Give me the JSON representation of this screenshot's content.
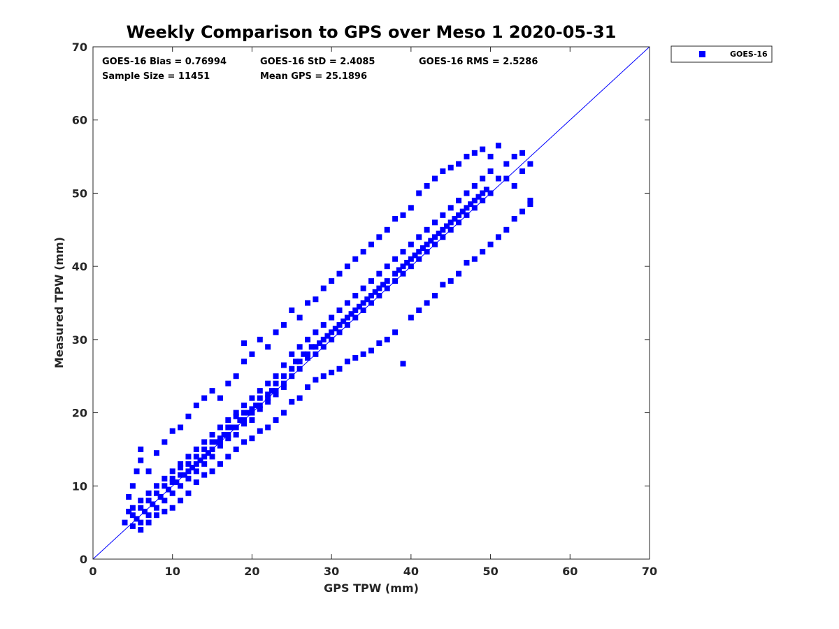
{
  "chart_data": {
    "type": "scatter",
    "title": "Weekly Comparison to GPS over Meso 1 2020-05-31",
    "xlabel": "GPS TPW (mm)",
    "ylabel": "Measured TPW (mm)",
    "xlim": [
      0,
      70
    ],
    "ylim": [
      0,
      70
    ],
    "xticks": [
      0,
      10,
      20,
      30,
      40,
      50,
      60,
      70
    ],
    "yticks": [
      0,
      10,
      20,
      30,
      40,
      50,
      60,
      70
    ],
    "grid": false,
    "legend_position": "outside-top-right",
    "stats": {
      "bias": "GOES-16 Bias = 0.76994",
      "std": "GOES-16 StD = 2.4085",
      "rms": "GOES-16 RMS = 2.5286",
      "sample_size": "Sample Size = 11451",
      "mean_gps": "Mean GPS = 25.1896"
    },
    "reference_line": {
      "type": "one-to-one",
      "from": [
        0,
        0
      ],
      "to": [
        70,
        70
      ],
      "color": "#0000ff"
    },
    "series": [
      {
        "name": "GOES-16",
        "color": "#0000ff",
        "marker": "square",
        "points": [
          [
            4,
            5
          ],
          [
            4.5,
            6.5
          ],
          [
            5,
            4.5
          ],
          [
            5,
            7
          ],
          [
            5.5,
            5.5
          ],
          [
            6,
            5
          ],
          [
            6,
            8
          ],
          [
            6.5,
            6.5
          ],
          [
            7,
            6
          ],
          [
            7,
            9
          ],
          [
            7.5,
            7.5
          ],
          [
            8,
            7
          ],
          [
            8,
            10
          ],
          [
            8.5,
            8.5
          ],
          [
            9,
            8
          ],
          [
            9,
            11
          ],
          [
            9.5,
            9.5
          ],
          [
            10,
            9
          ],
          [
            10,
            12
          ],
          [
            10.5,
            10.5
          ],
          [
            11,
            10
          ],
          [
            11,
            13
          ],
          [
            11.5,
            11.5
          ],
          [
            12,
            11
          ],
          [
            12,
            14
          ],
          [
            12.5,
            12.5
          ],
          [
            13,
            12
          ],
          [
            13,
            15
          ],
          [
            13.5,
            13.5
          ],
          [
            14,
            13
          ],
          [
            14,
            16
          ],
          [
            14.5,
            14.5
          ],
          [
            15,
            14
          ],
          [
            15,
            17
          ],
          [
            15.5,
            16
          ],
          [
            16,
            15.5
          ],
          [
            16,
            18
          ],
          [
            16.5,
            17
          ],
          [
            17,
            16.5
          ],
          [
            17,
            19
          ],
          [
            17.5,
            18
          ],
          [
            18,
            17
          ],
          [
            18,
            20
          ],
          [
            18.5,
            19
          ],
          [
            19,
            18.5
          ],
          [
            19,
            21
          ],
          [
            19.5,
            20
          ],
          [
            20,
            19
          ],
          [
            20,
            22
          ],
          [
            20.5,
            21
          ],
          [
            21,
            20.5
          ],
          [
            21,
            23
          ],
          [
            22,
            21.5
          ],
          [
            22,
            24
          ],
          [
            22.5,
            23
          ],
          [
            23,
            22.5
          ],
          [
            23,
            25
          ],
          [
            24,
            24
          ],
          [
            24,
            26.5
          ],
          [
            25,
            25
          ],
          [
            25,
            28
          ],
          [
            25.5,
            27
          ],
          [
            26,
            26
          ],
          [
            26,
            29
          ],
          [
            26.5,
            28
          ],
          [
            27,
            27.5
          ],
          [
            27,
            30
          ],
          [
            27.5,
            29
          ],
          [
            28,
            28
          ],
          [
            28,
            31
          ],
          [
            28.5,
            29.5
          ],
          [
            29,
            29
          ],
          [
            29,
            32
          ],
          [
            29.5,
            30.5
          ],
          [
            30,
            30
          ],
          [
            30,
            33
          ],
          [
            30.5,
            31.5
          ],
          [
            31,
            31
          ],
          [
            31,
            34
          ],
          [
            31.5,
            32.5
          ],
          [
            32,
            32
          ],
          [
            32,
            35
          ],
          [
            32.5,
            33.5
          ],
          [
            33,
            33
          ],
          [
            33,
            36
          ],
          [
            33.5,
            34.5
          ],
          [
            34,
            34
          ],
          [
            34,
            37
          ],
          [
            34.5,
            35.5
          ],
          [
            35,
            35
          ],
          [
            35,
            38
          ],
          [
            35.5,
            36.5
          ],
          [
            36,
            36
          ],
          [
            36,
            39
          ],
          [
            36.5,
            37.5
          ],
          [
            37,
            37
          ],
          [
            37,
            40
          ],
          [
            38,
            38
          ],
          [
            38,
            41
          ],
          [
            38.5,
            39.5
          ],
          [
            39,
            39
          ],
          [
            39,
            42
          ],
          [
            39.5,
            40.5
          ],
          [
            40,
            40
          ],
          [
            40,
            43
          ],
          [
            40.5,
            41.5
          ],
          [
            41,
            41
          ],
          [
            41,
            44
          ],
          [
            41.5,
            42.5
          ],
          [
            42,
            42
          ],
          [
            42,
            45
          ],
          [
            42.5,
            43.5
          ],
          [
            43,
            43
          ],
          [
            43,
            46
          ],
          [
            43.5,
            44.5
          ],
          [
            44,
            44
          ],
          [
            44,
            47
          ],
          [
            44.5,
            45.5
          ],
          [
            45,
            45
          ],
          [
            45,
            48
          ],
          [
            45.5,
            46.5
          ],
          [
            46,
            46
          ],
          [
            46,
            49
          ],
          [
            46.5,
            47.5
          ],
          [
            47,
            47
          ],
          [
            47,
            50
          ],
          [
            47.5,
            48.5
          ],
          [
            48,
            48
          ],
          [
            48,
            51
          ],
          [
            48.5,
            49.5
          ],
          [
            49,
            49
          ],
          [
            49,
            52
          ],
          [
            49.5,
            50.5
          ],
          [
            50,
            50
          ],
          [
            50,
            53
          ],
          [
            51,
            52
          ],
          [
            52,
            54
          ],
          [
            53,
            51
          ],
          [
            54,
            53
          ],
          [
            55,
            54
          ],
          [
            4.5,
            8.5
          ],
          [
            5,
            10
          ],
          [
            5.5,
            12
          ],
          [
            6,
            13.5
          ],
          [
            6,
            15
          ],
          [
            7,
            12
          ],
          [
            8,
            14.5
          ],
          [
            9,
            16
          ],
          [
            10,
            17.5
          ],
          [
            11,
            18
          ],
          [
            12,
            19.5
          ],
          [
            13,
            21
          ],
          [
            14,
            22
          ],
          [
            15,
            23
          ],
          [
            16,
            22
          ],
          [
            17,
            24
          ],
          [
            18,
            25
          ],
          [
            19,
            27
          ],
          [
            19,
            29.5
          ],
          [
            20,
            28
          ],
          [
            21,
            30
          ],
          [
            22,
            29
          ],
          [
            23,
            31
          ],
          [
            24,
            32
          ],
          [
            25,
            34
          ],
          [
            26,
            33
          ],
          [
            27,
            35
          ],
          [
            28,
            35.5
          ],
          [
            29,
            37
          ],
          [
            30,
            38
          ],
          [
            31,
            39
          ],
          [
            32,
            40
          ],
          [
            33,
            41
          ],
          [
            34,
            42
          ],
          [
            35,
            43
          ],
          [
            36,
            44
          ],
          [
            37,
            45
          ],
          [
            38,
            46.5
          ],
          [
            39,
            47
          ],
          [
            40,
            48
          ],
          [
            41,
            50
          ],
          [
            42,
            51
          ],
          [
            43,
            52
          ],
          [
            44,
            53
          ],
          [
            45,
            53.5
          ],
          [
            46,
            54
          ],
          [
            47,
            55
          ],
          [
            48,
            55.5
          ],
          [
            49,
            56
          ],
          [
            50,
            55
          ],
          [
            51,
            56.5
          ],
          [
            52,
            52
          ],
          [
            53,
            55
          ],
          [
            54,
            55.5
          ],
          [
            55,
            49
          ],
          [
            6,
            4
          ],
          [
            7,
            5
          ],
          [
            8,
            6
          ],
          [
            9,
            6.5
          ],
          [
            10,
            7
          ],
          [
            11,
            8
          ],
          [
            12,
            9
          ],
          [
            13,
            10.5
          ],
          [
            14,
            11.5
          ],
          [
            15,
            12
          ],
          [
            16,
            13
          ],
          [
            17,
            14
          ],
          [
            18,
            15
          ],
          [
            19,
            16
          ],
          [
            20,
            16.5
          ],
          [
            21,
            17.5
          ],
          [
            22,
            18
          ],
          [
            23,
            19
          ],
          [
            24,
            20
          ],
          [
            25,
            21.5
          ],
          [
            26,
            22
          ],
          [
            27,
            23.5
          ],
          [
            28,
            24.5
          ],
          [
            29,
            25
          ],
          [
            30,
            25.5
          ],
          [
            31,
            26
          ],
          [
            32,
            27
          ],
          [
            33,
            27.5
          ],
          [
            34,
            28
          ],
          [
            35,
            28.5
          ],
          [
            36,
            29.5
          ],
          [
            37,
            30
          ],
          [
            38,
            31
          ],
          [
            39,
            26.7
          ],
          [
            40,
            33
          ],
          [
            41,
            34
          ],
          [
            42,
            35
          ],
          [
            43,
            36
          ],
          [
            44,
            37.5
          ],
          [
            45,
            38
          ],
          [
            46,
            39
          ],
          [
            47,
            40.5
          ],
          [
            48,
            41
          ],
          [
            49,
            42
          ],
          [
            50,
            43
          ],
          [
            51,
            44
          ],
          [
            52,
            45
          ],
          [
            53,
            46.5
          ],
          [
            54,
            47.5
          ],
          [
            55,
            48.5
          ],
          [
            10,
            11
          ],
          [
            12,
            13
          ],
          [
            14,
            15
          ],
          [
            16,
            16.5
          ],
          [
            18,
            19.5
          ],
          [
            20,
            20.5
          ],
          [
            22,
            22
          ],
          [
            24,
            25
          ],
          [
            26,
            27
          ],
          [
            28,
            29
          ],
          [
            30,
            31
          ],
          [
            32,
            33
          ],
          [
            34,
            35
          ],
          [
            36,
            37
          ],
          [
            38,
            39
          ],
          [
            40,
            41
          ],
          [
            42,
            43
          ],
          [
            44,
            45
          ],
          [
            46,
            47
          ],
          [
            48,
            49
          ],
          [
            11,
            12.5
          ],
          [
            13,
            14
          ],
          [
            15,
            16
          ],
          [
            17,
            18
          ],
          [
            19,
            20
          ],
          [
            21,
            22
          ],
          [
            23,
            24
          ],
          [
            25,
            26
          ],
          [
            27,
            28
          ],
          [
            29,
            30
          ],
          [
            31,
            32
          ],
          [
            33,
            34
          ],
          [
            35,
            36
          ],
          [
            37,
            38
          ],
          [
            39,
            40
          ],
          [
            41,
            42
          ],
          [
            43,
            44
          ],
          [
            45,
            46
          ],
          [
            47,
            48
          ],
          [
            49,
            50
          ],
          [
            5,
            6
          ],
          [
            6,
            7
          ],
          [
            7,
            8
          ],
          [
            8,
            9
          ],
          [
            9,
            10
          ],
          [
            10,
            10.5
          ],
          [
            11,
            11.5
          ],
          [
            12,
            12
          ],
          [
            13,
            13
          ],
          [
            14,
            14
          ],
          [
            15,
            15
          ],
          [
            16,
            16
          ],
          [
            17,
            17
          ],
          [
            18,
            18
          ],
          [
            19,
            19
          ],
          [
            20,
            20
          ],
          [
            21,
            21
          ],
          [
            22,
            22.5
          ],
          [
            23,
            23
          ],
          [
            24,
            23.5
          ]
        ]
      }
    ]
  }
}
